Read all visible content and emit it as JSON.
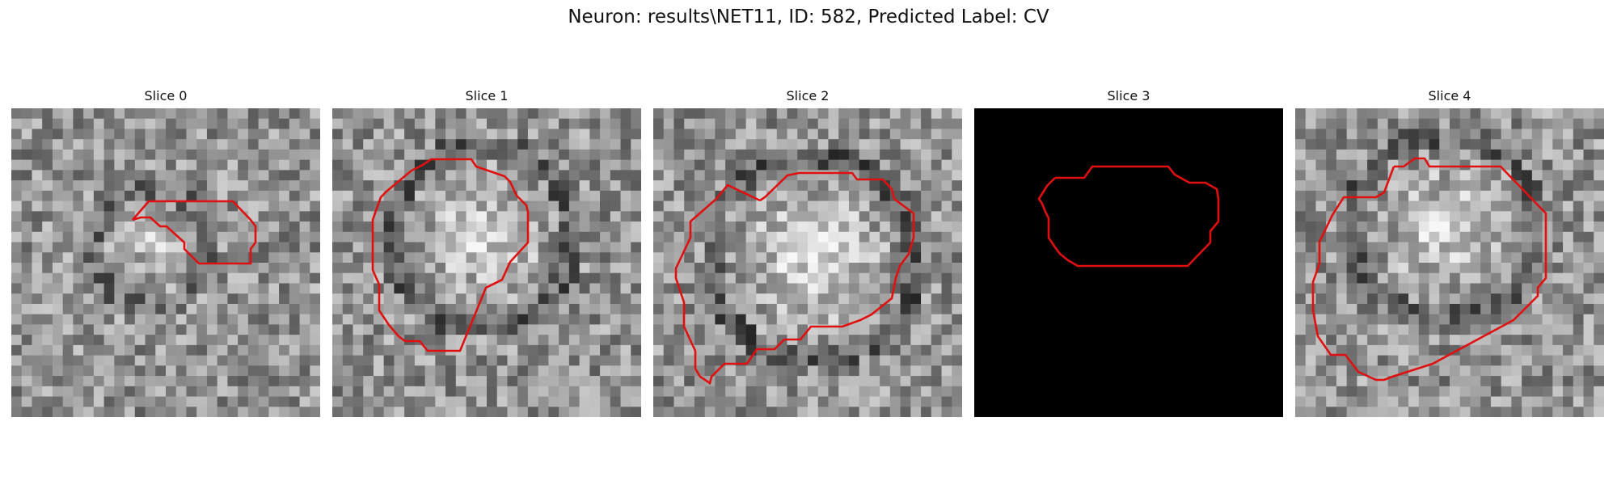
{
  "figure": {
    "title": "Neuron: results\\NET11, ID: 582, Predicted Label: CV"
  },
  "panels": [
    {
      "title": "Slice 0",
      "image_kind": "grayscale-microscopy-crop",
      "seed": 11,
      "blob_strength": 0.55,
      "blank": false
    },
    {
      "title": "Slice 1",
      "image_kind": "grayscale-microscopy-crop",
      "seed": 23,
      "blob_strength": 0.75,
      "blank": false
    },
    {
      "title": "Slice 2",
      "image_kind": "grayscale-microscopy-crop",
      "seed": 37,
      "blob_strength": 0.85,
      "blank": false
    },
    {
      "title": "Slice 3",
      "image_kind": "empty-black-slice",
      "seed": 0,
      "blob_strength": 0,
      "blank": true
    },
    {
      "title": "Slice 4",
      "image_kind": "grayscale-microscopy-crop",
      "seed": 51,
      "blob_strength": 0.7,
      "blank": false
    }
  ],
  "colors": {
    "contour": "#e01010",
    "blank_background": "#000000"
  },
  "contour_icon": "neuron-outline-contour"
}
